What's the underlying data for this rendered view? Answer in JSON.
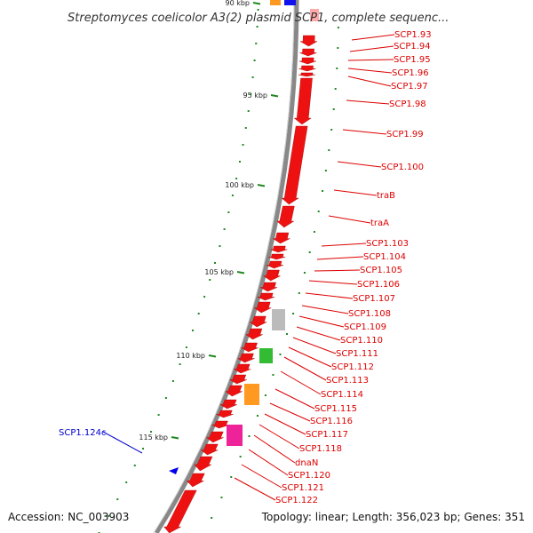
{
  "title": "Streptomyces coelicolor A3(2) plasmid SCP1, complete sequenc...",
  "footer": {
    "accession": "Accession: NC_003903",
    "stats": "Topology: linear; Length: 356,023 bp; Genes: 351"
  },
  "colors": {
    "gene_red": "#ee1111",
    "label_red": "#dd0000",
    "label_blue": "#0000cc",
    "tick_green": "#228822",
    "backbone": "#888888",
    "cog_gray": "#bbbbbb",
    "cog_green": "#33bb33",
    "cog_orange": "#ff9922",
    "cog_magenta": "#ee2299",
    "cog_blue": "#1111ee",
    "cog_pink": "#ffaaaa"
  },
  "tick_labels": [
    "90 kbp",
    "95 kbp",
    "100 kbp",
    "105 kbp",
    "110 kbp",
    "115 kbp"
  ],
  "gene_labels": [
    "SCP1.93",
    "SCP1.94",
    "SCP1.95",
    "SCP1.96",
    "SCP1.97",
    "SCP1.98",
    "SCP1.99",
    "SCP1.100",
    "traB",
    "traA",
    "SCP1.103",
    "SCP1.104",
    "SCP1.105",
    "SCP1.106",
    "SCP1.107",
    "SCP1.108",
    "SCP1.109",
    "SCP1.110",
    "SCP1.111",
    "SCP1.112",
    "SCP1.113",
    "SCP1.114",
    "SCP1.115",
    "SCP1.116",
    "SCP1.117",
    "SCP1.118",
    "dnaN",
    "SCP1.120",
    "SCP1.121",
    "SCP1.122"
  ],
  "left_label": "SCP1.124c"
}
